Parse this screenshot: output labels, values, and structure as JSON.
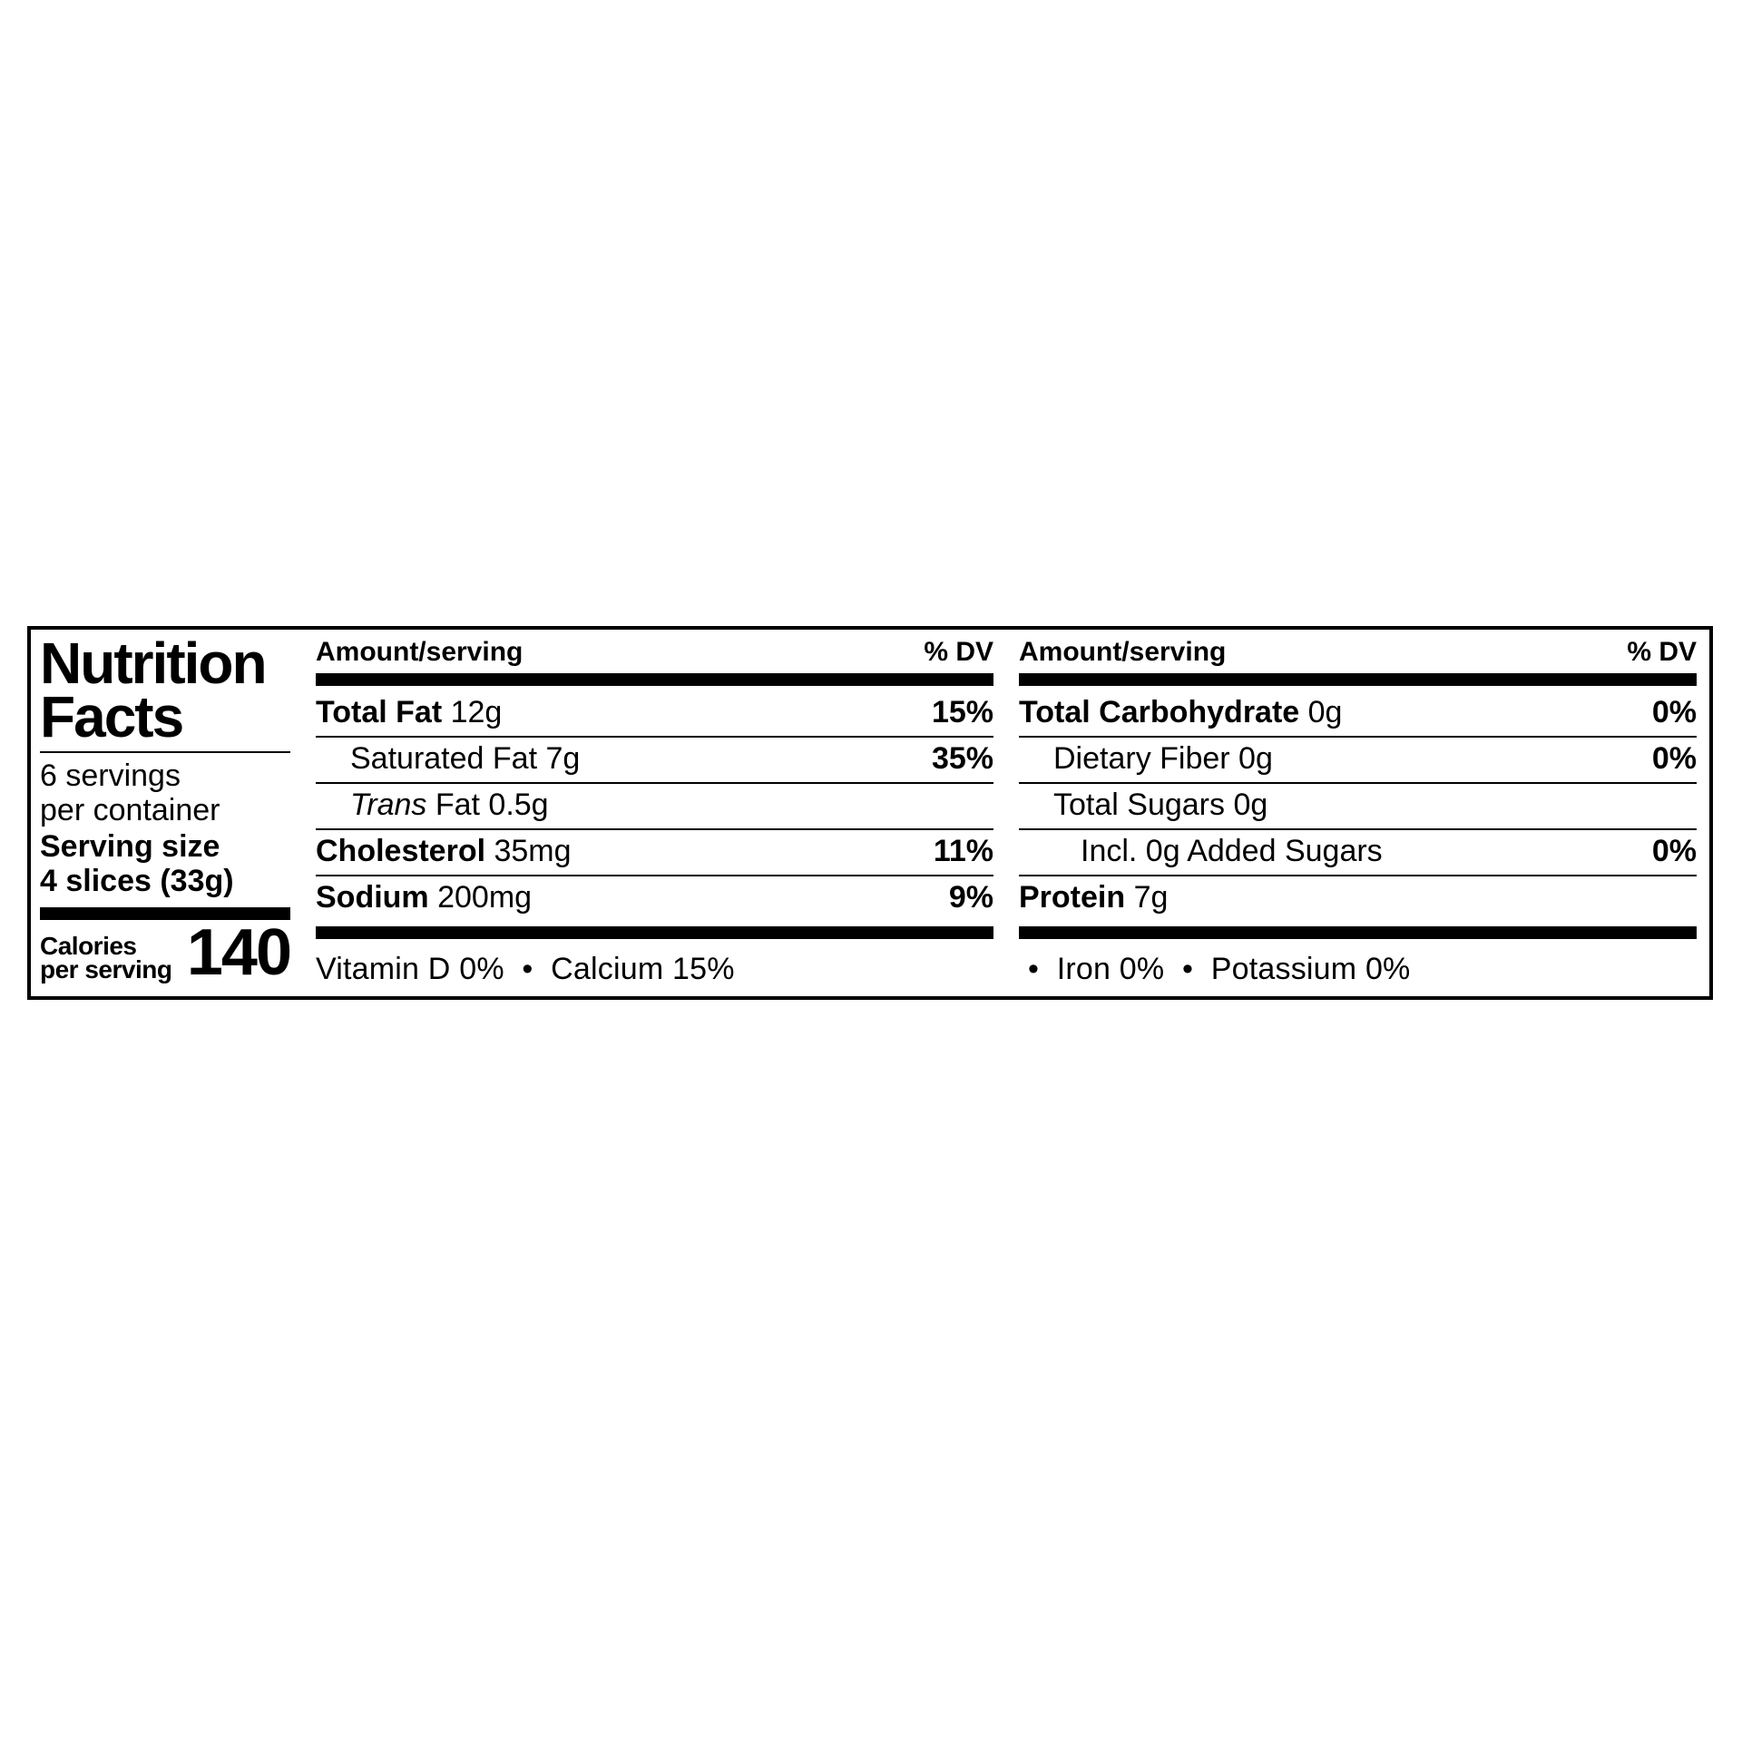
{
  "title_l1": "Nutrition",
  "title_l2": "Facts",
  "servings_l1": "6 servings",
  "servings_l2": "per container",
  "servsize_l1": "Serving size",
  "servsize_l2": "4 slices (33g)",
  "cal_l1": "Calories",
  "cal_l2": "per serving",
  "cal_val": "140",
  "hdr_amt": "Amount/serving",
  "hdr_dv": "% DV",
  "c1": {
    "r1_b": "Total Fat",
    "r1_v": " 12g",
    "r1_dv": "15%",
    "r2": "Saturated Fat 7g",
    "r2_dv": "35%",
    "r3_i": "Trans",
    "r3_t": " Fat 0.5g",
    "r4_b": "Cholesterol",
    "r4_v": " 35mg",
    "r4_dv": "11%",
    "r5_b": "Sodium",
    "r5_v": " 200mg",
    "r5_dv": "9%"
  },
  "c2": {
    "r1_b": "Total Carbohydrate",
    "r1_v": " 0g",
    "r1_dv": "0%",
    "r2": "Dietary Fiber 0g",
    "r2_dv": "0%",
    "r3": "Total Sugars 0g",
    "r4": "Incl. 0g Added Sugars",
    "r4_dv": "0%",
    "r5_b": "Protein",
    "r5_v": " 7g"
  },
  "vit": {
    "a": "Vitamin D 0%",
    "b": "Calcium 15%",
    "c": "Iron 0%",
    "d": "Potassium 0%"
  },
  "bullet": "•"
}
